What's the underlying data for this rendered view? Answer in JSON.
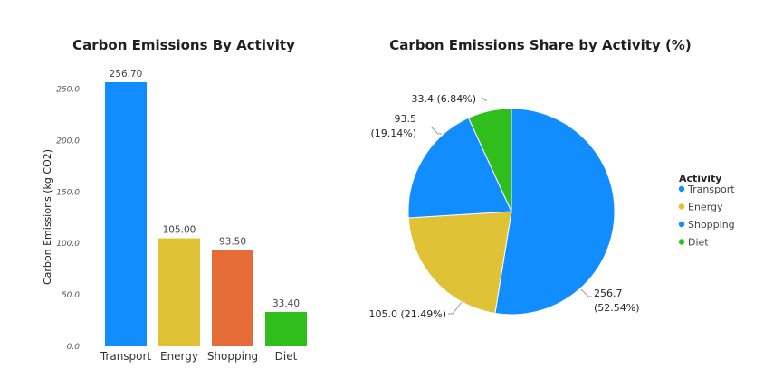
{
  "chart_data": [
    {
      "type": "bar",
      "title": "Carbon Emissions By Activity",
      "xlabel": "",
      "ylabel": "Carbon Emissions (kg CO2)",
      "categories": [
        "Transport",
        "Energy",
        "Shopping",
        "Diet"
      ],
      "values": [
        256.7,
        105.0,
        93.5,
        33.4
      ],
      "value_labels": [
        "256.70",
        "105.00",
        "93.50",
        "33.40"
      ],
      "colors": [
        "#118DFF",
        "#E0C236",
        "#E66C37",
        "#2FBE1B"
      ],
      "yticks": [
        "0.0",
        "50.0",
        "100.0",
        "150.0",
        "200.0",
        "250.0"
      ],
      "ylim": [
        0,
        256.7
      ],
      "grid": false
    },
    {
      "type": "pie",
      "title": "Carbon Emissions Share by Activity (%)",
      "categories": [
        "Transport",
        "Energy",
        "Shopping",
        "Diet"
      ],
      "values": [
        256.7,
        105.0,
        93.5,
        33.4
      ],
      "percents": [
        52.54,
        21.49,
        19.14,
        6.84
      ],
      "colors": [
        "#118DFF",
        "#E0C236",
        "#118DFF",
        "#2FBE1B"
      ],
      "slice_labels": [
        [
          "256.7",
          "(52.54%)"
        ],
        [
          "105.0 (21.49%)"
        ],
        [
          "93.5",
          "(19.14%)"
        ],
        [
          "33.4 (6.84%)"
        ]
      ],
      "legend_title": "Activity",
      "legend_position": "right"
    }
  ]
}
